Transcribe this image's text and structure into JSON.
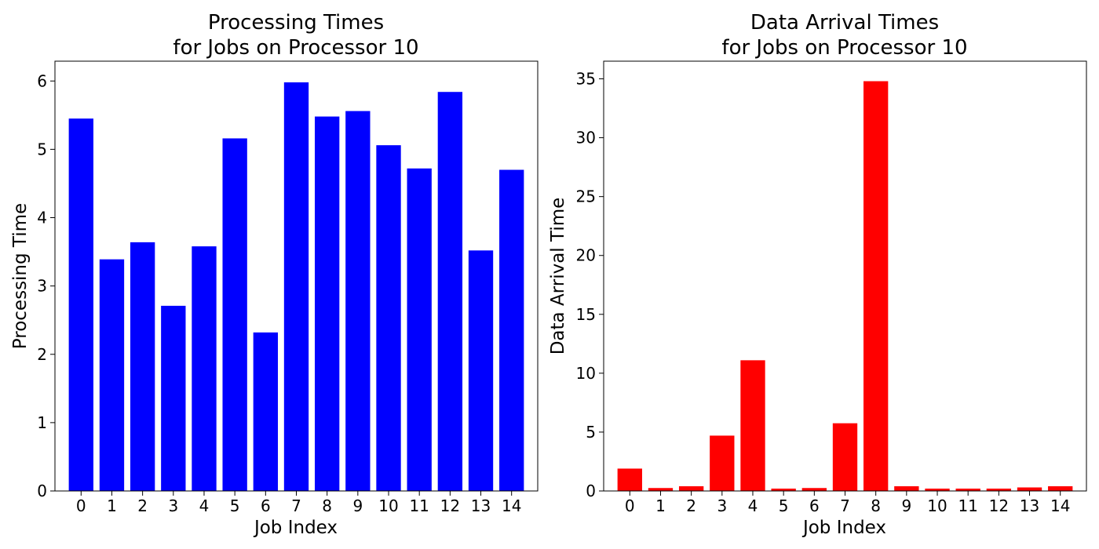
{
  "chart_data": [
    {
      "type": "bar",
      "title": [
        "Processing Times",
        "for Jobs on Processor 10"
      ],
      "xlabel": "Job Index",
      "ylabel": "Processing Time",
      "categories": [
        "0",
        "1",
        "2",
        "3",
        "4",
        "5",
        "6",
        "7",
        "8",
        "9",
        "10",
        "11",
        "12",
        "13",
        "14"
      ],
      "values": [
        5.45,
        3.39,
        3.64,
        2.71,
        3.58,
        5.16,
        2.32,
        5.98,
        5.48,
        5.56,
        5.06,
        4.72,
        5.84,
        3.52,
        4.7
      ],
      "ylim": [
        0,
        6.29
      ],
      "yticks": [
        0,
        1,
        2,
        3,
        4,
        5,
        6
      ],
      "color": "#0000ff",
      "grid": false
    },
    {
      "type": "bar",
      "title": [
        "Data Arrival Times",
        "for Jobs on Processor 10"
      ],
      "xlabel": "Job Index",
      "ylabel": "Data Arrival Time",
      "categories": [
        "0",
        "1",
        "2",
        "3",
        "4",
        "5",
        "6",
        "7",
        "8",
        "9",
        "10",
        "11",
        "12",
        "13",
        "14"
      ],
      "values": [
        1.9,
        0.25,
        0.4,
        4.7,
        11.1,
        0.2,
        0.25,
        5.75,
        34.8,
        0.4,
        0.2,
        0.2,
        0.2,
        0.3,
        0.4
      ],
      "ylim": [
        0,
        36.5
      ],
      "yticks": [
        0,
        5,
        10,
        15,
        20,
        25,
        30,
        35
      ],
      "color": "#ff0000",
      "grid": false
    }
  ]
}
